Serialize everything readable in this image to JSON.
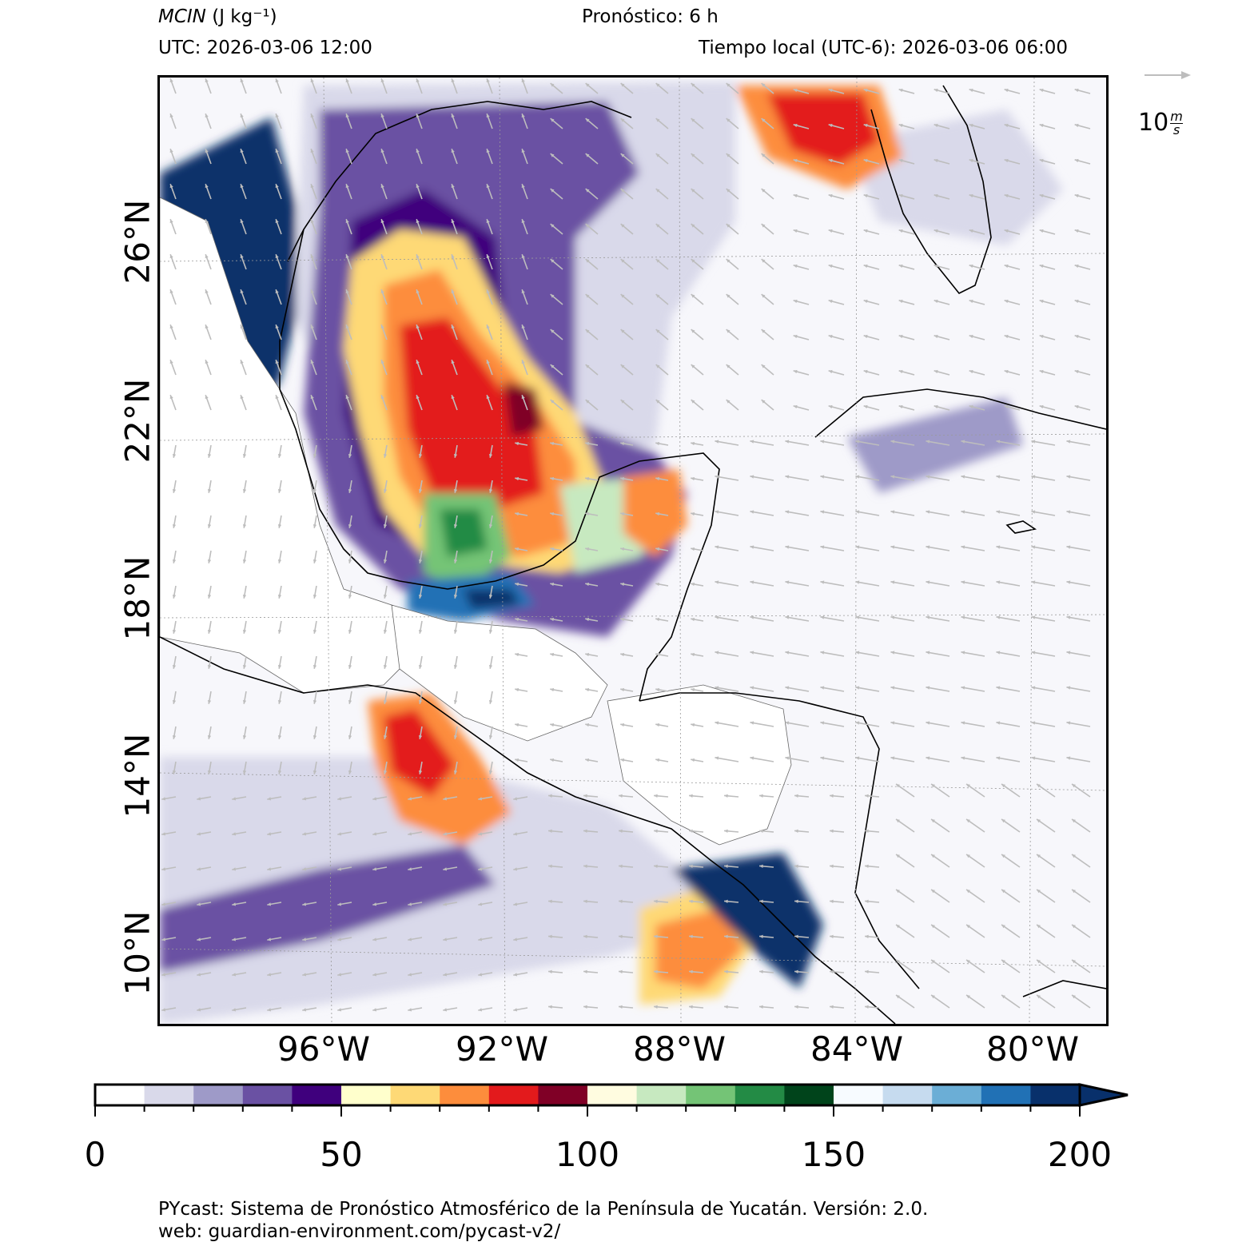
{
  "header": {
    "variable": "MCIN",
    "units": "(J kg⁻¹)",
    "forecast": "Pronóstico: 6 h",
    "utc": "UTC:  2026-03-06 12:00",
    "local": "Tiempo local (UTC-6): 2026-03-06 06:00"
  },
  "map": {
    "lat_labels": [
      "26°N",
      "22°N",
      "18°N",
      "14°N",
      "10°N"
    ],
    "lon_labels": [
      "96°W",
      "92°W",
      "88°W",
      "84°W",
      "80°W"
    ],
    "extent": {
      "lon": [
        -99.8,
        -78.5
      ],
      "lat": [
        8.5,
        29.0
      ]
    }
  },
  "quiver_key": {
    "value": "10",
    "unit_num": "m",
    "unit_den": "s",
    "color": "#bdbdbd"
  },
  "colorbar": {
    "tick_labels": [
      "0",
      "50",
      "100",
      "150",
      "200"
    ],
    "bounds": [
      0,
      200
    ],
    "step": 10,
    "extend": "max",
    "colors": [
      "#ffffff",
      "#d9d9ea",
      "#9e9ac8",
      "#6a51a3",
      "#3f007d",
      "#ffffcc",
      "#fed976",
      "#fd8d3c",
      "#e31a1c",
      "#800026",
      "#fffce0",
      "#c7e9c0",
      "#74c476",
      "#238b45",
      "#00441b",
      "#f7fbff",
      "#c6dbef",
      "#6baed6",
      "#2171b5",
      "#08306b"
    ]
  },
  "footer": {
    "line1": "PYcast: Sistema de Pronóstico Atmosférico de la Península de Yucatán. Versión: 2.0.",
    "line2": "web: guardian-environment.com/pycast-v2/"
  }
}
